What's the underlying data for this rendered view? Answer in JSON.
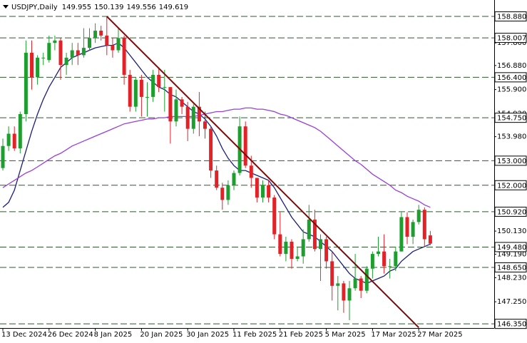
{
  "chart_data": {
    "type": "candlestick",
    "symbol": "USDJPY,Daily",
    "categories": [
      "13 Dec 2024",
      null,
      null,
      null,
      null,
      null,
      null,
      null,
      "26 Dec 2024",
      null,
      null,
      null,
      null,
      null,
      null,
      null,
      "8 Jan 2025",
      null,
      null,
      null,
      null,
      null,
      null,
      null,
      "20 Jan 2025",
      null,
      null,
      null,
      null,
      null,
      null,
      null,
      "30 Jan 2025",
      null,
      null,
      null,
      null,
      null,
      null,
      null,
      "11 Feb 2025",
      null,
      null,
      null,
      null,
      null,
      null,
      null,
      "21 Feb 2025",
      null,
      null,
      null,
      null,
      null,
      null,
      null,
      "5 Mar 2025",
      null,
      null,
      null,
      null,
      null,
      null,
      null,
      "17 Mar 2025",
      null,
      null,
      null,
      null,
      null,
      null,
      null,
      "27 Mar 2025",
      null,
      null
    ],
    "open": [
      152.7,
      153.6,
      154.1,
      153.5,
      154.9,
      157.4,
      156.4,
      157.2,
      157.1,
      157.8,
      157.9,
      156.9,
      157.2,
      157.5,
      157.3,
      157.6,
      158.0,
      158.3,
      158.1,
      157.7,
      157.5,
      158.0,
      156.5,
      155.2,
      156.3,
      155.6,
      155.6,
      156.5,
      156.0,
      156.0,
      154.6,
      155.5,
      155.2,
      154.3,
      155.2,
      154.6,
      154.3,
      152.6,
      151.9,
      151.4,
      152.0,
      152.5,
      154.4,
      152.8,
      152.3,
      151.5,
      152.0,
      151.5,
      150.0,
      149.2,
      149.7,
      149.0,
      149.1,
      149.8,
      150.6,
      149.4,
      149.8,
      148.9,
      147.9,
      148.0,
      147.3,
      147.8,
      148.2,
      147.7,
      148.6,
      149.2,
      149.3,
      148.7,
      148.7,
      149.3,
      150.7,
      149.9,
      150.5,
      151.0,
      149.955
    ],
    "high": [
      153.9,
      154.4,
      154.4,
      155.0,
      157.9,
      157.9,
      157.3,
      157.4,
      158.1,
      158.1,
      158.0,
      157.4,
      157.8,
      157.8,
      158.4,
      158.4,
      158.6,
      158.5,
      158.88,
      158.0,
      158.4,
      158.1,
      156.7,
      156.4,
      156.5,
      156.2,
      156.7,
      156.8,
      156.7,
      156.0,
      155.9,
      155.6,
      155.4,
      155.3,
      155.8,
      155.0,
      154.4,
      152.8,
      152.1,
      152.2,
      152.6,
      154.8,
      154.6,
      153.2,
      152.3,
      152.2,
      152.2,
      151.6,
      150.9,
      149.9,
      149.8,
      149.5,
      150.2,
      151.2,
      151.0,
      150.0,
      149.9,
      149.3,
      148.3,
      148.1,
      148.1,
      149.2,
      148.3,
      148.7,
      149.3,
      149.9,
      150.0,
      149.0,
      149.5,
      150.9,
      150.9,
      150.6,
      151.2,
      151.1,
      150.139
    ],
    "low": [
      152.6,
      153.4,
      153.4,
      153.3,
      154.6,
      155.9,
      156.1,
      156.9,
      157.0,
      157.5,
      156.3,
      156.5,
      156.9,
      156.9,
      157.2,
      157.5,
      157.8,
      157.9,
      157.3,
      157.2,
      157.4,
      156.1,
      155.0,
      155.0,
      154.8,
      154.8,
      155.4,
      155.8,
      155.0,
      153.7,
      154.4,
      154.9,
      153.8,
      154.1,
      154.0,
      153.9,
      152.3,
      151.8,
      151.0,
      151.2,
      151.8,
      152.4,
      152.7,
      151.9,
      151.3,
      151.3,
      151.3,
      149.8,
      149.1,
      148.9,
      148.6,
      148.9,
      148.8,
      149.7,
      149.3,
      148.1,
      148.6,
      147.3,
      146.9,
      146.8,
      146.5,
      147.7,
      147.4,
      147.6,
      148.2,
      149.1,
      148.4,
      148.2,
      148.5,
      149.3,
      149.6,
      149.6,
      150.4,
      149.5,
      149.556
    ],
    "close": [
      153.6,
      154.1,
      153.5,
      154.9,
      157.4,
      156.4,
      157.2,
      157.2,
      157.8,
      157.9,
      156.9,
      157.2,
      157.5,
      157.3,
      157.6,
      158.0,
      158.3,
      158.1,
      157.7,
      157.5,
      158.0,
      156.5,
      155.2,
      156.3,
      155.6,
      155.6,
      156.5,
      156.0,
      156.0,
      154.6,
      155.5,
      155.2,
      154.3,
      155.2,
      154.6,
      154.3,
      152.6,
      151.9,
      151.4,
      152.0,
      152.5,
      154.4,
      152.8,
      152.3,
      151.5,
      152.0,
      151.5,
      150.0,
      149.2,
      149.7,
      149.0,
      149.1,
      149.8,
      150.6,
      149.4,
      149.8,
      148.9,
      147.9,
      148.0,
      147.3,
      147.8,
      148.2,
      147.7,
      148.6,
      149.2,
      149.3,
      148.7,
      148.7,
      149.3,
      150.7,
      149.9,
      150.5,
      151.0,
      149.8,
      149.619
    ],
    "up_color": "#1e9e2e",
    "down_color": "#e32228",
    "lines": [
      {
        "color": "#1b1f7a",
        "values": [
          151.1,
          151.3,
          151.8,
          152.6,
          153.4,
          154.2,
          154.9,
          155.5,
          156.0,
          156.4,
          156.8,
          157.0,
          157.2,
          157.3,
          157.4,
          157.5,
          157.6,
          157.65,
          157.7,
          157.7,
          157.8,
          157.6,
          157.3,
          157.0,
          156.7,
          156.4,
          156.2,
          156.0,
          155.9,
          155.7,
          155.6,
          155.4,
          155.2,
          155.0,
          154.9,
          154.7,
          154.4,
          154.0,
          153.5,
          153.1,
          152.8,
          152.6,
          152.6,
          152.5,
          152.4,
          152.3,
          152.2,
          151.9,
          151.5,
          151.1,
          150.7,
          150.4,
          150.1,
          150.0,
          149.9,
          149.7,
          149.5,
          149.3,
          149.0,
          148.7,
          148.4,
          148.2,
          148.1,
          148.0,
          148.1,
          148.2,
          148.3,
          148.5,
          148.6,
          148.9,
          149.1,
          149.3,
          149.4,
          149.5,
          149.6
        ]
      },
      {
        "color": "#9b3fd6",
        "values": [
          151.9,
          152.05,
          152.2,
          152.35,
          152.5,
          152.6,
          152.75,
          152.9,
          153.05,
          153.2,
          153.3,
          153.45,
          153.6,
          153.7,
          153.8,
          153.9,
          154.0,
          154.1,
          154.2,
          154.3,
          154.4,
          154.5,
          154.55,
          154.6,
          154.65,
          154.7,
          154.7,
          154.75,
          154.75,
          154.8,
          154.8,
          154.8,
          154.8,
          154.8,
          154.85,
          154.9,
          154.95,
          155.0,
          155.0,
          155.05,
          155.1,
          155.1,
          155.15,
          155.15,
          155.1,
          155.1,
          155.05,
          155.0,
          154.9,
          154.85,
          154.75,
          154.65,
          154.55,
          154.45,
          154.35,
          154.2,
          154.0,
          153.8,
          153.6,
          153.4,
          153.2,
          153.0,
          152.85,
          152.65,
          152.45,
          152.3,
          152.15,
          152.0,
          151.8,
          151.7,
          151.55,
          151.45,
          151.35,
          151.2,
          151.1
        ]
      }
    ],
    "trendline": {
      "color": "#7a0a0a",
      "x": [
        18,
        72
      ],
      "values": [
        158.88,
        146.2
      ]
    },
    "ylim": [
      146.18,
      159.55
    ],
    "yticks": [
      {
        "value": 157.8,
        "label": "157.800"
      },
      {
        "value": 156.88,
        "label": "156.880"
      },
      {
        "value": 155.9,
        "label": "155.900"
      },
      {
        "value": 154.92,
        "label": "154.920"
      },
      {
        "value": 153.98,
        "label": "153.980"
      },
      {
        "value": 150.13,
        "label": "150.130"
      },
      {
        "value": 149.19,
        "label": "149.190"
      },
      {
        "value": 148.23,
        "label": "148.230"
      },
      {
        "value": 147.25,
        "label": "147.250"
      }
    ],
    "levels": [
      {
        "value": 158.88,
        "label": "158.880"
      },
      {
        "value": 158.007,
        "label": "158.007"
      },
      {
        "value": 156.4,
        "label": "156.400"
      },
      {
        "value": 154.75,
        "label": "154.750"
      },
      {
        "value": 153,
        "label": "153.000"
      },
      {
        "value": 152,
        "label": "152.000"
      },
      {
        "value": 150.92,
        "label": "150.920"
      },
      {
        "value": 149.48,
        "label": "149.480"
      },
      {
        "value": 148.65,
        "label": "148.650"
      },
      {
        "value": 146.35,
        "label": "146.350"
      }
    ],
    "level_color": "#2e5a2e"
  }
}
